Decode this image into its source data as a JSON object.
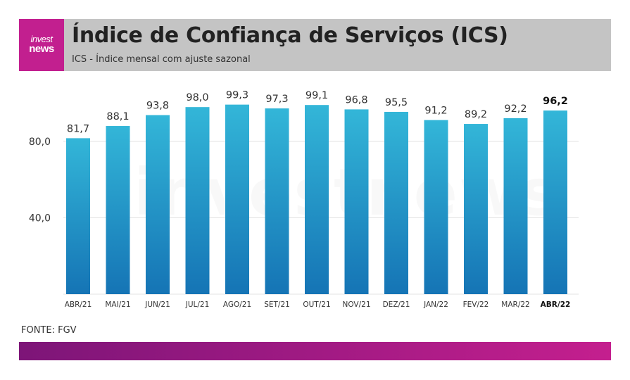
{
  "header": {
    "logo_line1": "invest",
    "logo_line2": "news",
    "title": "Índice de Confiança de Serviços (ICS)",
    "subtitle": "ICS - Índice mensal com ajuste sazonal"
  },
  "watermark": "investnews",
  "source": "FONTE: FGV",
  "colors": {
    "brand": "#c21f8f",
    "header_bg": "#c4c4c4",
    "bar_top": "#33b6d8",
    "bar_bottom": "#1574b5",
    "footer_start": "#7d1578",
    "footer_end": "#c41f8e"
  },
  "chart_data": {
    "type": "bar",
    "title": "",
    "xlabel": "",
    "ylabel": "",
    "categories": [
      "ABR/21",
      "MAI/21",
      "JUN/21",
      "JUL/21",
      "AGO/21",
      "SET/21",
      "OUT/21",
      "NOV/21",
      "DEZ/21",
      "JAN/22",
      "FEV/22",
      "MAR/22",
      "ABR/22"
    ],
    "values": [
      81.7,
      88.1,
      93.8,
      98.0,
      99.3,
      97.3,
      99.1,
      96.8,
      95.5,
      91.2,
      89.2,
      92.2,
      96.2
    ],
    "value_labels": [
      "81,7",
      "88,1",
      "93,8",
      "98,0",
      "99,3",
      "97,3",
      "99,1",
      "96,8",
      "95,5",
      "91,2",
      "89,2",
      "92,2",
      "96,2"
    ],
    "highlight_index": 12,
    "yticks": [
      40,
      80
    ],
    "ytick_labels": [
      "40,0",
      "80,0"
    ],
    "ylim": [
      0,
      115
    ],
    "grid": true,
    "legend": "none"
  }
}
